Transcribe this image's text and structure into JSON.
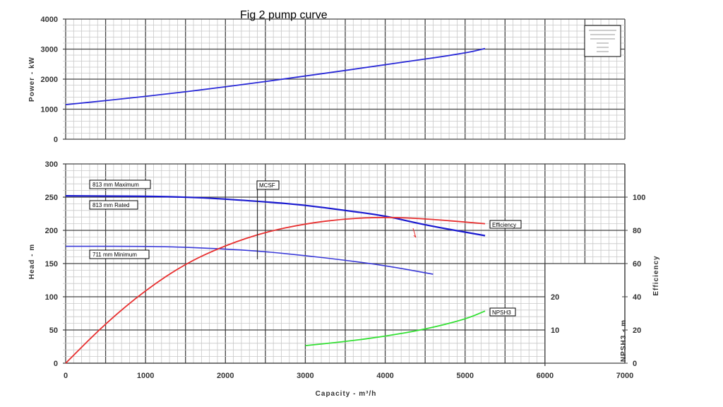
{
  "chart_data": [
    {
      "type": "line",
      "title": "Fig 2 pump curve",
      "xlabel": "Capacity - m³/h",
      "ylabel": "Power - kW",
      "xlim": [
        0,
        7000
      ],
      "ylim": [
        0,
        4000
      ],
      "x_ticks": [
        "0",
        "1000",
        "2000",
        "3000",
        "4000",
        "5000",
        "6000",
        "7000"
      ],
      "y_ticks": [
        "0",
        "1000",
        "2000",
        "3000",
        "4000"
      ],
      "grid": true,
      "series": [
        {
          "color": "#2a2ad8",
          "x": [
            0,
            1000,
            2000,
            3000,
            4000,
            5000,
            5250
          ],
          "y": [
            1150,
            1420,
            1740,
            2100,
            2480,
            2860,
            3020
          ]
        }
      ]
    },
    {
      "type": "line",
      "xlabel": "Capacity - m³/h",
      "ylabel": "Head - m",
      "y2label": "Efficiency",
      "y3label": "NPSH3 - m",
      "xlim": [
        0,
        7000
      ],
      "ylim": [
        0,
        300
      ],
      "y2lim": [
        0,
        125
      ],
      "y3lim": [
        0,
        30
      ],
      "y_ticks": [
        "0",
        "50",
        "100",
        "150",
        "200",
        "250",
        "300"
      ],
      "y2_ticks": [
        "0",
        "20",
        "40",
        "60",
        "80",
        "100"
      ],
      "y3_ticks": [
        "10",
        "20"
      ],
      "grid": true,
      "annotations": {
        "mcsf": "MCSF",
        "mcsf_x": 2400
      },
      "series": [
        {
          "name": "813 mm  Maximum",
          "label2": "813 mm  Rated",
          "axis": "head",
          "color": "#1a1ad0",
          "x": [
            0,
            1500,
            2500,
            3000,
            3500,
            4000,
            4500,
            5250
          ],
          "y": [
            252,
            251,
            243,
            238,
            230,
            222,
            208,
            192
          ]
        },
        {
          "name": "711 mm  Minimum",
          "axis": "head",
          "color": "#3a3ad8",
          "x": [
            0,
            1200,
            2000,
            2500,
            3000,
            3500,
            4000,
            4600
          ],
          "y": [
            176,
            176,
            172,
            168,
            162,
            155,
            147,
            134
          ]
        },
        {
          "name": "Efficiency",
          "axis": "efficiency",
          "color": "#e83030",
          "x": [
            0,
            500,
            1000,
            1500,
            2000,
            2500,
            3000,
            3500,
            4000,
            4500,
            5250
          ],
          "y": [
            0,
            24,
            44,
            60,
            71,
            79,
            84,
            87,
            88,
            87,
            84
          ]
        },
        {
          "name": "NPSH3",
          "axis": "npsh",
          "color": "#33e033",
          "x": [
            3000,
            3500,
            4000,
            4500,
            5000,
            5250
          ],
          "y": [
            5.3,
            6.5,
            8.1,
            10.2,
            13.2,
            15.7
          ]
        }
      ]
    }
  ]
}
